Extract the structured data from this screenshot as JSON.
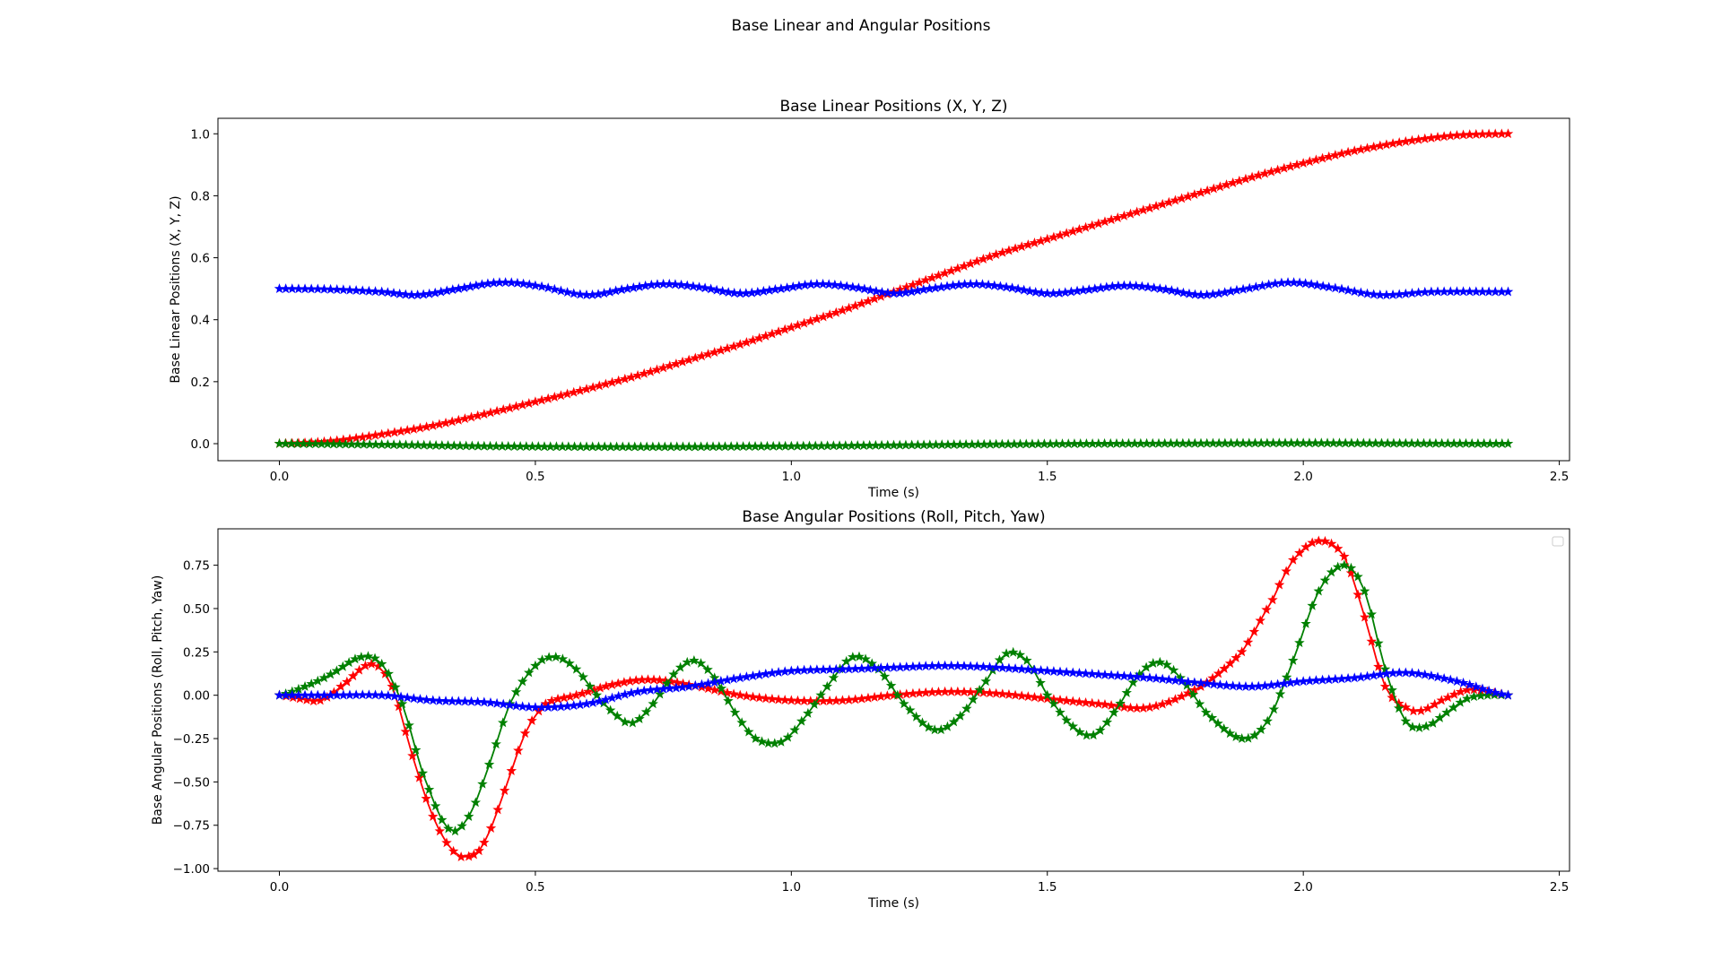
{
  "figure": {
    "suptitle": "Base Linear and Angular Positions"
  },
  "chart_data": [
    {
      "type": "line",
      "title": "Base Linear Positions (X, Y, Z)",
      "xlabel": "Time (s)",
      "ylabel": "Base Linear Positions (X, Y, Z)",
      "xlim": [
        -0.12,
        2.52
      ],
      "ylim": [
        -0.055,
        1.05
      ],
      "xticks": [
        0.0,
        0.5,
        1.0,
        1.5,
        2.0,
        2.5
      ],
      "xtick_labels": [
        "0.0",
        "0.5",
        "1.0",
        "1.5",
        "2.0",
        "2.5"
      ],
      "yticks": [
        0.0,
        0.2,
        0.4,
        0.6,
        0.8,
        1.0
      ],
      "ytick_labels": [
        "0.0",
        "0.2",
        "0.4",
        "0.6",
        "0.8",
        "1.0"
      ],
      "grid": false,
      "legend": "none",
      "marker": "star",
      "series": [
        {
          "color": "#ff0000",
          "x": [
            0.0,
            0.1,
            0.2,
            0.3,
            0.4,
            0.5,
            0.6,
            0.7,
            0.8,
            0.9,
            1.0,
            1.1,
            1.2,
            1.3,
            1.4,
            1.5,
            1.6,
            1.7,
            1.8,
            1.9,
            2.0,
            2.1,
            2.2,
            2.3,
            2.4
          ],
          "y": [
            0.0,
            0.008,
            0.03,
            0.058,
            0.095,
            0.135,
            0.176,
            0.22,
            0.27,
            0.32,
            0.375,
            0.43,
            0.49,
            0.55,
            0.61,
            0.66,
            0.71,
            0.76,
            0.81,
            0.86,
            0.905,
            0.945,
            0.975,
            0.995,
            1.0
          ]
        },
        {
          "color": "#0000ff",
          "x": [
            0.0,
            0.1,
            0.2,
            0.27,
            0.35,
            0.43,
            0.5,
            0.6,
            0.68,
            0.75,
            0.82,
            0.9,
            0.98,
            1.05,
            1.12,
            1.2,
            1.27,
            1.35,
            1.42,
            1.5,
            1.57,
            1.65,
            1.72,
            1.8,
            1.87,
            1.97,
            2.05,
            2.15,
            2.25,
            2.4
          ],
          "y": [
            0.5,
            0.498,
            0.49,
            0.48,
            0.5,
            0.52,
            0.51,
            0.48,
            0.5,
            0.515,
            0.505,
            0.485,
            0.5,
            0.515,
            0.505,
            0.485,
            0.5,
            0.515,
            0.505,
            0.485,
            0.495,
            0.51,
            0.5,
            0.48,
            0.495,
            0.52,
            0.505,
            0.48,
            0.49,
            0.49
          ]
        },
        {
          "color": "#008000",
          "x": [
            0.0,
            0.2,
            0.4,
            0.6,
            0.8,
            1.0,
            1.2,
            1.4,
            1.6,
            1.8,
            2.0,
            2.2,
            2.4
          ],
          "y": [
            0.0,
            -0.003,
            -0.008,
            -0.01,
            -0.01,
            -0.008,
            -0.005,
            -0.002,
            0.0,
            0.001,
            0.002,
            0.001,
            0.0
          ]
        }
      ]
    },
    {
      "type": "line",
      "title": "Base Angular Positions (Roll, Pitch, Yaw)",
      "xlabel": "Time (s)",
      "ylabel": "Base Angular Positions (Roll, Pitch, Yaw)",
      "xlim": [
        -0.12,
        2.52
      ],
      "ylim": [
        -1.015,
        0.96
      ],
      "xticks": [
        0.0,
        0.5,
        1.0,
        1.5,
        2.0,
        2.5
      ],
      "xtick_labels": [
        "0.0",
        "0.5",
        "1.0",
        "1.5",
        "2.0",
        "2.5"
      ],
      "yticks": [
        -1.0,
        -0.75,
        -0.5,
        -0.25,
        0.0,
        0.25,
        0.5,
        0.75
      ],
      "ytick_labels": [
        "−1.00",
        "−0.75",
        "−0.50",
        "−0.25",
        "0.00",
        "0.25",
        "0.50",
        "0.75"
      ],
      "grid": false,
      "legend": "top-right (empty)",
      "marker": "star",
      "series": [
        {
          "color": "#ff0000",
          "x": [
            0.0,
            0.04,
            0.08,
            0.12,
            0.18,
            0.22,
            0.26,
            0.3,
            0.34,
            0.37,
            0.4,
            0.44,
            0.48,
            0.52,
            0.58,
            0.65,
            0.72,
            0.8,
            0.9,
            1.0,
            1.1,
            1.2,
            1.3,
            1.4,
            1.5,
            1.6,
            1.7,
            1.8,
            1.88,
            1.94,
            1.98,
            2.03,
            2.08,
            2.12,
            2.16,
            2.2,
            2.23,
            2.27,
            2.32,
            2.36,
            2.4
          ],
          "y": [
            0.0,
            -0.02,
            -0.03,
            0.05,
            0.18,
            0.05,
            -0.35,
            -0.7,
            -0.9,
            -0.93,
            -0.85,
            -0.55,
            -0.22,
            -0.05,
            0.0,
            0.06,
            0.09,
            0.06,
            0.0,
            -0.03,
            -0.03,
            0.0,
            0.02,
            0.01,
            -0.02,
            -0.05,
            -0.07,
            0.05,
            0.25,
            0.55,
            0.78,
            0.89,
            0.8,
            0.45,
            0.05,
            -0.07,
            -0.09,
            -0.03,
            0.03,
            0.02,
            0.0
          ]
        },
        {
          "color": "#008000",
          "x": [
            0.0,
            0.05,
            0.1,
            0.16,
            0.2,
            0.24,
            0.28,
            0.33,
            0.37,
            0.41,
            0.45,
            0.5,
            0.54,
            0.58,
            0.62,
            0.66,
            0.69,
            0.73,
            0.77,
            0.81,
            0.85,
            0.89,
            0.93,
            0.98,
            1.02,
            1.07,
            1.12,
            1.17,
            1.22,
            1.28,
            1.33,
            1.38,
            1.42,
            1.46,
            1.5,
            1.55,
            1.59,
            1.63,
            1.68,
            1.72,
            1.76,
            1.81,
            1.88,
            1.93,
            1.98,
            2.03,
            2.08,
            2.12,
            2.16,
            2.2,
            2.24,
            2.28,
            2.32,
            2.36,
            2.4
          ],
          "y": [
            0.0,
            0.05,
            0.12,
            0.22,
            0.18,
            -0.05,
            -0.45,
            -0.77,
            -0.7,
            -0.4,
            -0.05,
            0.17,
            0.22,
            0.15,
            0.0,
            -0.12,
            -0.16,
            -0.05,
            0.12,
            0.2,
            0.1,
            -0.1,
            -0.25,
            -0.27,
            -0.15,
            0.05,
            0.22,
            0.15,
            -0.05,
            -0.2,
            -0.12,
            0.08,
            0.24,
            0.2,
            0.0,
            -0.18,
            -0.23,
            -0.1,
            0.12,
            0.19,
            0.1,
            -0.1,
            -0.25,
            -0.15,
            0.2,
            0.6,
            0.75,
            0.6,
            0.15,
            -0.15,
            -0.18,
            -0.1,
            -0.02,
            0.0,
            0.0
          ]
        },
        {
          "color": "#0000ff",
          "x": [
            0.0,
            0.1,
            0.2,
            0.3,
            0.4,
            0.5,
            0.6,
            0.7,
            0.8,
            0.9,
            1.0,
            1.1,
            1.2,
            1.3,
            1.4,
            1.5,
            1.6,
            1.7,
            1.8,
            1.9,
            2.0,
            2.1,
            2.2,
            2.3,
            2.4
          ],
          "y": [
            0.0,
            0.0,
            0.0,
            -0.03,
            -0.04,
            -0.07,
            -0.05,
            0.02,
            0.05,
            0.1,
            0.14,
            0.15,
            0.16,
            0.17,
            0.16,
            0.14,
            0.12,
            0.1,
            0.07,
            0.05,
            0.08,
            0.1,
            0.13,
            0.08,
            0.0
          ]
        }
      ]
    }
  ]
}
